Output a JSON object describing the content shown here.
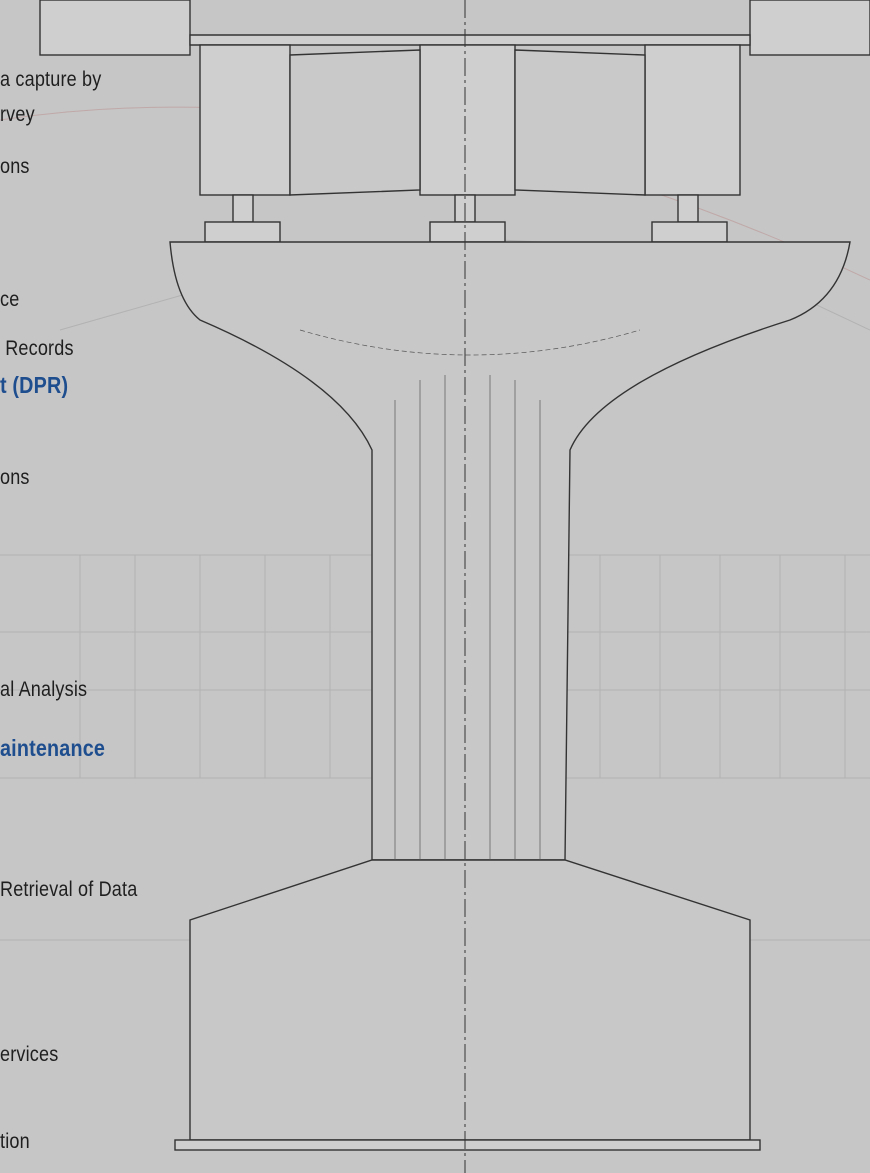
{
  "items": [
    {
      "text": "a capture by",
      "highlight": false
    },
    {
      "text": "rvey",
      "highlight": false
    },
    {
      "text": "ons",
      "highlight": false
    },
    {
      "text": "ce",
      "highlight": false
    },
    {
      "text": " Records",
      "highlight": false
    },
    {
      "text": "t (DPR)",
      "highlight": true
    },
    {
      "text": "ons",
      "highlight": false
    },
    {
      "text": "al Analysis",
      "highlight": false
    },
    {
      "text": "aintenance",
      "highlight": true
    },
    {
      "text": "Retrieval of Data",
      "highlight": false
    },
    {
      "text": "ervices",
      "highlight": false
    },
    {
      "text": "tion",
      "highlight": false
    }
  ]
}
